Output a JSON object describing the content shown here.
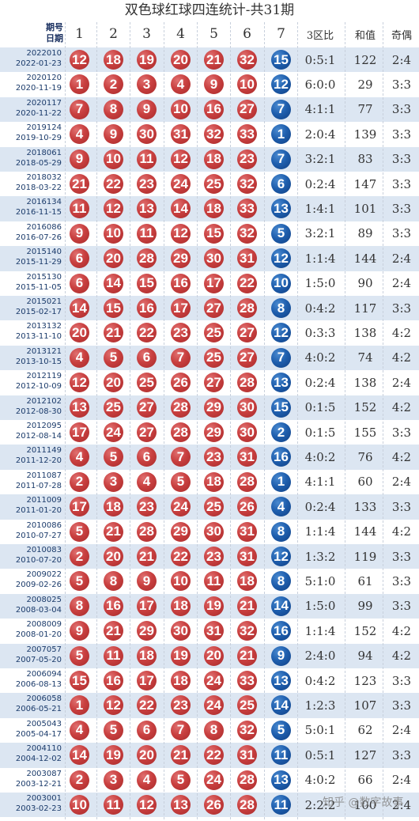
{
  "title": "双色球红球四连统计-共31期",
  "header": {
    "period_label": "期号",
    "date_label": "日期",
    "columns": [
      "1",
      "2",
      "3",
      "4",
      "5",
      "6",
      "7"
    ],
    "zone_ratio": "3区比",
    "sum": "和值",
    "odd_even": "奇偶"
  },
  "colors": {
    "red_ball": "#c94040",
    "blue_ball": "#1f5fae",
    "stripe": "#dce6f2"
  },
  "rows": [
    {
      "period": "2022010",
      "date": "2022-01-23",
      "reds": [
        "12",
        "18",
        "19",
        "20",
        "21",
        "32"
      ],
      "blue": "15",
      "zone": "0:5:1",
      "sum": "122",
      "oe": "2:4"
    },
    {
      "period": "2020120",
      "date": "2020-11-19",
      "reds": [
        "1",
        "2",
        "3",
        "4",
        "9",
        "10"
      ],
      "blue": "12",
      "zone": "6:0:0",
      "sum": "29",
      "oe": "3:3"
    },
    {
      "period": "2020117",
      "date": "2020-11-22",
      "reds": [
        "7",
        "8",
        "9",
        "10",
        "16",
        "27"
      ],
      "blue": "7",
      "zone": "4:1:1",
      "sum": "77",
      "oe": "3:3"
    },
    {
      "period": "2019124",
      "date": "2019-10-29",
      "reds": [
        "4",
        "9",
        "30",
        "31",
        "32",
        "33"
      ],
      "blue": "1",
      "zone": "2:0:4",
      "sum": "139",
      "oe": "3:3"
    },
    {
      "period": "2018061",
      "date": "2018-05-29",
      "reds": [
        "9",
        "10",
        "11",
        "12",
        "18",
        "23"
      ],
      "blue": "7",
      "zone": "3:2:1",
      "sum": "83",
      "oe": "3:3"
    },
    {
      "period": "2018032",
      "date": "2018-03-22",
      "reds": [
        "21",
        "22",
        "23",
        "24",
        "25",
        "32"
      ],
      "blue": "6",
      "zone": "0:2:4",
      "sum": "147",
      "oe": "3:3"
    },
    {
      "period": "2016134",
      "date": "2016-11-15",
      "reds": [
        "11",
        "12",
        "13",
        "14",
        "18",
        "33"
      ],
      "blue": "13",
      "zone": "1:4:1",
      "sum": "101",
      "oe": "3:3"
    },
    {
      "period": "2016086",
      "date": "2016-07-26",
      "reds": [
        "9",
        "10",
        "11",
        "12",
        "15",
        "32"
      ],
      "blue": "5",
      "zone": "3:2:1",
      "sum": "89",
      "oe": "3:3"
    },
    {
      "period": "2015140",
      "date": "2015-11-29",
      "reds": [
        "6",
        "20",
        "28",
        "29",
        "30",
        "31"
      ],
      "blue": "12",
      "zone": "1:1:4",
      "sum": "144",
      "oe": "2:4"
    },
    {
      "period": "2015130",
      "date": "2015-11-05",
      "reds": [
        "6",
        "14",
        "15",
        "16",
        "17",
        "22"
      ],
      "blue": "10",
      "zone": "1:5:0",
      "sum": "90",
      "oe": "2:4"
    },
    {
      "period": "2015021",
      "date": "2015-02-17",
      "reds": [
        "14",
        "15",
        "16",
        "17",
        "27",
        "28"
      ],
      "blue": "8",
      "zone": "0:4:2",
      "sum": "117",
      "oe": "3:3"
    },
    {
      "period": "2013132",
      "date": "2013-11-10",
      "reds": [
        "20",
        "21",
        "22",
        "23",
        "25",
        "27"
      ],
      "blue": "12",
      "zone": "0:3:3",
      "sum": "138",
      "oe": "4:2"
    },
    {
      "period": "2013121",
      "date": "2013-10-15",
      "reds": [
        "4",
        "5",
        "6",
        "7",
        "25",
        "27"
      ],
      "blue": "7",
      "zone": "4:0:2",
      "sum": "74",
      "oe": "4:2"
    },
    {
      "period": "2012119",
      "date": "2012-10-09",
      "reds": [
        "12",
        "20",
        "25",
        "26",
        "27",
        "28"
      ],
      "blue": "13",
      "zone": "0:2:4",
      "sum": "138",
      "oe": "2:4"
    },
    {
      "period": "2012102",
      "date": "2012-08-30",
      "reds": [
        "13",
        "25",
        "27",
        "28",
        "29",
        "30"
      ],
      "blue": "15",
      "zone": "0:1:5",
      "sum": "152",
      "oe": "4:2"
    },
    {
      "period": "2012095",
      "date": "2012-08-14",
      "reds": [
        "17",
        "24",
        "27",
        "28",
        "29",
        "30"
      ],
      "blue": "2",
      "zone": "0:1:5",
      "sum": "155",
      "oe": "3:3"
    },
    {
      "period": "2011149",
      "date": "2011-12-20",
      "reds": [
        "4",
        "5",
        "6",
        "7",
        "23",
        "31"
      ],
      "blue": "16",
      "zone": "4:0:2",
      "sum": "76",
      "oe": "4:2"
    },
    {
      "period": "2011087",
      "date": "2011-07-28",
      "reds": [
        "2",
        "3",
        "4",
        "5",
        "18",
        "28"
      ],
      "blue": "1",
      "zone": "4:1:1",
      "sum": "60",
      "oe": "2:4"
    },
    {
      "period": "2011009",
      "date": "2011-01-20",
      "reds": [
        "17",
        "18",
        "23",
        "24",
        "25",
        "26"
      ],
      "blue": "4",
      "zone": "0:2:4",
      "sum": "133",
      "oe": "3:3"
    },
    {
      "period": "2010086",
      "date": "2010-07-27",
      "reds": [
        "5",
        "21",
        "28",
        "29",
        "30",
        "31"
      ],
      "blue": "8",
      "zone": "1:1:4",
      "sum": "144",
      "oe": "4:2"
    },
    {
      "period": "2010083",
      "date": "2010-07-20",
      "reds": [
        "2",
        "20",
        "21",
        "22",
        "23",
        "31"
      ],
      "blue": "12",
      "zone": "1:3:2",
      "sum": "119",
      "oe": "3:3"
    },
    {
      "period": "2009022",
      "date": "2009-02-26",
      "reds": [
        "5",
        "8",
        "9",
        "10",
        "11",
        "18"
      ],
      "blue": "8",
      "zone": "5:1:0",
      "sum": "61",
      "oe": "3:3"
    },
    {
      "period": "2008025",
      "date": "2008-03-04",
      "reds": [
        "8",
        "16",
        "17",
        "18",
        "19",
        "21"
      ],
      "blue": "14",
      "zone": "1:5:0",
      "sum": "99",
      "oe": "3:3"
    },
    {
      "period": "2008009",
      "date": "2008-01-20",
      "reds": [
        "9",
        "21",
        "29",
        "30",
        "31",
        "32"
      ],
      "blue": "16",
      "zone": "1:1:4",
      "sum": "152",
      "oe": "4:2"
    },
    {
      "period": "2007057",
      "date": "2007-05-20",
      "reds": [
        "5",
        "11",
        "18",
        "19",
        "20",
        "21"
      ],
      "blue": "9",
      "zone": "2:4:0",
      "sum": "94",
      "oe": "4:2"
    },
    {
      "period": "2006094",
      "date": "2006-08-13",
      "reds": [
        "15",
        "16",
        "17",
        "18",
        "24",
        "33"
      ],
      "blue": "13",
      "zone": "0:4:2",
      "sum": "123",
      "oe": "3:3"
    },
    {
      "period": "2006058",
      "date": "2006-05-21",
      "reds": [
        "1",
        "12",
        "22",
        "23",
        "24",
        "25"
      ],
      "blue": "14",
      "zone": "1:2:3",
      "sum": "107",
      "oe": "3:3"
    },
    {
      "period": "2005043",
      "date": "2005-04-17",
      "reds": [
        "4",
        "5",
        "6",
        "7",
        "8",
        "32"
      ],
      "blue": "5",
      "zone": "5:0:1",
      "sum": "62",
      "oe": "2:4"
    },
    {
      "period": "2004110",
      "date": "2004-12-02",
      "reds": [
        "14",
        "19",
        "20",
        "21",
        "22",
        "31"
      ],
      "blue": "11",
      "zone": "0:5:1",
      "sum": "127",
      "oe": "3:3"
    },
    {
      "period": "2003087",
      "date": "2003-12-21",
      "reds": [
        "2",
        "3",
        "4",
        "5",
        "24",
        "28"
      ],
      "blue": "13",
      "zone": "4:0:2",
      "sum": "66",
      "oe": "2:4"
    },
    {
      "period": "2003001",
      "date": "2003-02-23",
      "reds": [
        "10",
        "11",
        "12",
        "13",
        "26",
        "28"
      ],
      "blue": "11",
      "zone": "2:2:2",
      "sum": "100",
      "oe": "2:4"
    }
  ],
  "watermark": "知乎 @数字故事"
}
